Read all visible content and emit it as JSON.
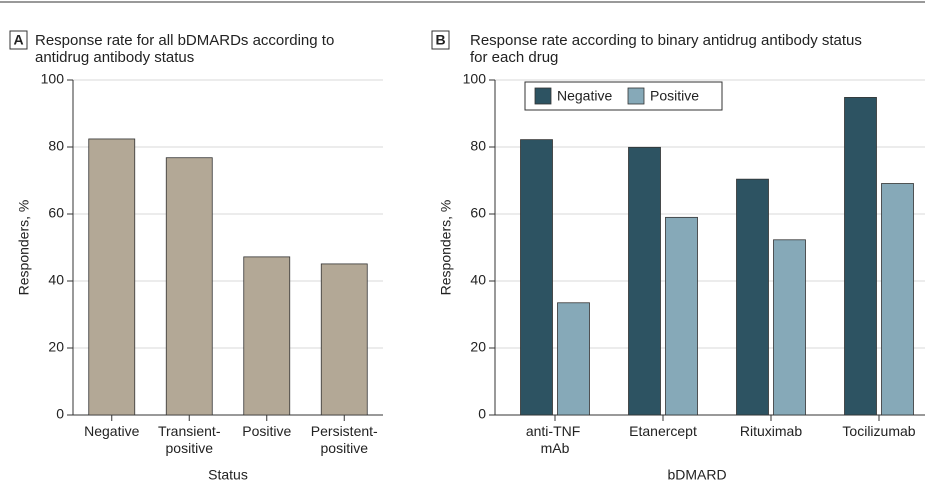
{
  "chart_data": [
    {
      "type": "bar",
      "panel": "A",
      "title": "Response rate for all bDMARDs according to antidrug antibody status",
      "x_label": "Status",
      "y_label": "Responders, %",
      "categories": [
        "Negative",
        "Transient-positive",
        "Positive",
        "Persistent-positive"
      ],
      "values": [
        82.4,
        76.8,
        47.2,
        45.1
      ],
      "color": "#b3a896",
      "ylim": [
        0,
        100
      ],
      "yticks": [
        0,
        20,
        40,
        60,
        80,
        100
      ],
      "grid": true
    },
    {
      "type": "grouped_bar",
      "panel": "B",
      "title": "Response rate according to binary antidrug antibody status for each drug",
      "x_label": "bDMARD",
      "y_label": "Responders, %",
      "categories": [
        "anti-TNF mAb",
        "Etanercept",
        "Rituximab",
        "Tocilizumab"
      ],
      "series": [
        {
          "name": "Negative",
          "color": "#2d5362",
          "values": [
            82.2,
            79.9,
            70.4,
            94.8
          ]
        },
        {
          "name": "Positive",
          "color": "#86a9b8",
          "values": [
            33.5,
            59.0,
            52.3,
            69.1
          ]
        }
      ],
      "ylim": [
        0,
        100
      ],
      "yticks": [
        0,
        20,
        40,
        60,
        80,
        100
      ],
      "grid": true,
      "legend": "top-left"
    }
  ]
}
